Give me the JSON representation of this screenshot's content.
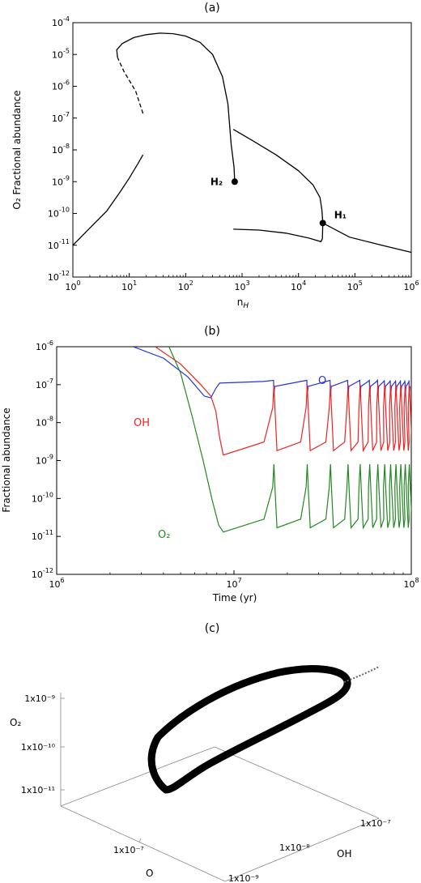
{
  "chart_data": [
    {
      "panel_label": "(a)",
      "type": "line",
      "xlabel": "n_H",
      "ylabel": "O₂ Fractional abundance",
      "xscale": "log",
      "yscale": "log",
      "xlim": [
        1,
        1000000
      ],
      "ylim": [
        1e-12,
        0.0001
      ],
      "xticks": [
        {
          "value": 1,
          "base": "10",
          "exp": "0"
        },
        {
          "value": 10,
          "base": "10",
          "exp": "1"
        },
        {
          "value": 100,
          "base": "10",
          "exp": "2"
        },
        {
          "value": 1000,
          "base": "10",
          "exp": "3"
        },
        {
          "value": 10000,
          "base": "10",
          "exp": "4"
        },
        {
          "value": 100000,
          "base": "10",
          "exp": "5"
        },
        {
          "value": 1000000,
          "base": "10",
          "exp": "6"
        }
      ],
      "yticks": [
        {
          "value": 1e-12,
          "base": "10",
          "exp": "-12"
        },
        {
          "value": 1e-11,
          "base": "10",
          "exp": "-11"
        },
        {
          "value": 1e-10,
          "base": "10",
          "exp": "-10"
        },
        {
          "value": 1e-09,
          "base": "10",
          "exp": "-9"
        },
        {
          "value": 1e-08,
          "base": "10",
          "exp": "-8"
        },
        {
          "value": 1e-07,
          "base": "10",
          "exp": "-7"
        },
        {
          "value": 1e-06,
          "base": "10",
          "exp": "-6"
        },
        {
          "value": 1e-05,
          "base": "10",
          "exp": "-5"
        },
        {
          "value": 0.0001,
          "base": "10",
          "exp": "-4"
        }
      ],
      "series": [
        {
          "style": "solid",
          "points": [
            [
              1,
              1e-11
            ],
            [
              2,
              3.5e-11
            ],
            [
              4,
              1.2e-10
            ],
            [
              7,
              5e-10
            ],
            [
              10,
              1.3e-09
            ],
            [
              14,
              3.5e-09
            ],
            [
              17.5,
              7e-09
            ]
          ]
        },
        {
          "style": "dashed",
          "points": [
            [
              17.5,
              1.4e-07
            ],
            [
              13,
              7e-07
            ],
            [
              8,
              3e-06
            ],
            [
              6.2,
              8e-06
            ]
          ]
        },
        {
          "style": "solid",
          "points": [
            [
              6.2,
              8e-06
            ],
            [
              6,
              1.4e-05
            ],
            [
              7.5,
              2.2e-05
            ],
            [
              12,
              3.4e-05
            ],
            [
              20,
              4.2e-05
            ],
            [
              35,
              4.7e-05
            ],
            [
              60,
              4.5e-05
            ],
            [
              100,
              3.8e-05
            ],
            [
              180,
              2.4e-05
            ],
            [
              300,
              1e-05
            ],
            [
              450,
              2e-06
            ],
            [
              560,
              2.8e-07
            ],
            [
              640,
              1.5e-08
            ],
            [
              720,
              2.8e-09
            ],
            [
              740,
              1e-09
            ]
          ]
        },
        {
          "style": "solid",
          "points": [
            [
              700,
              4.4e-08
            ],
            [
              1500,
              2e-08
            ],
            [
              4000,
              7e-09
            ],
            [
              10000,
              2.2e-09
            ],
            [
              18000,
              8e-10
            ],
            [
              24000,
              3.2e-10
            ],
            [
              26000,
              1.3e-10
            ],
            [
              27000,
              5e-11
            ],
            [
              80000,
              1.8e-11
            ],
            [
              300000,
              1e-11
            ],
            [
              1000000,
              6e-12
            ]
          ]
        },
        {
          "style": "solid",
          "points": [
            [
              700,
              3.2e-11
            ],
            [
              2000,
              3e-11
            ],
            [
              6000,
              2.4e-11
            ],
            [
              15000,
              1.7e-11
            ],
            [
              25000,
              1.3e-11
            ],
            [
              26500,
              1.6e-11
            ],
            [
              27000,
              5e-11
            ]
          ]
        }
      ],
      "markers": [
        {
          "label": "H₂",
          "x": 740,
          "y": 1e-09
        },
        {
          "label": "H₁",
          "x": 27000,
          "y": 5e-11
        }
      ]
    },
    {
      "panel_label": "(b)",
      "type": "line",
      "xlabel": "Time (yr)",
      "ylabel": "Fractional abundance",
      "xscale": "log",
      "yscale": "log",
      "xlim": [
        1000000,
        100000000
      ],
      "ylim": [
        1e-12,
        1e-06
      ],
      "xticks": [
        {
          "value": 1000000,
          "base": "10",
          "exp": "6"
        },
        {
          "value": 10000000,
          "base": "10",
          "exp": "7"
        },
        {
          "value": 100000000,
          "base": "10",
          "exp": "8"
        }
      ],
      "yticks": [
        {
          "value": 1e-12,
          "base": "10",
          "exp": "-12"
        },
        {
          "value": 1e-11,
          "base": "10",
          "exp": "-11"
        },
        {
          "value": 1e-10,
          "base": "10",
          "exp": "-10"
        },
        {
          "value": 1e-09,
          "base": "10",
          "exp": "-9"
        },
        {
          "value": 1e-08,
          "base": "10",
          "exp": "-8"
        },
        {
          "value": 1e-07,
          "base": "10",
          "exp": "-7"
        },
        {
          "value": 1e-06,
          "base": "10",
          "exp": "-6"
        }
      ],
      "series": [
        {
          "name": "O",
          "color": "#2233dd",
          "base": 9e-08,
          "peak": 1.3e-07,
          "dip": 5e-08,
          "initial": [
            [
              2700000,
              1e-06
            ],
            [
              4000000,
              5e-07
            ],
            [
              5500000,
              1.6e-07
            ],
            [
              6800000,
              5e-08
            ],
            [
              7400000,
              4.5e-08
            ],
            [
              7900000,
              8e-08
            ],
            [
              8300000,
              1.1e-07
            ]
          ]
        },
        {
          "name": "OH",
          "color": "#ee2222",
          "base": 1.4e-09,
          "peak": 1e-07,
          "dip": 1.4e-09,
          "initial": [
            [
              3600000,
              1e-06
            ],
            [
              5000000,
              3.5e-07
            ],
            [
              6500000,
              1e-07
            ],
            [
              7400000,
              5e-08
            ],
            [
              7900000,
              2e-08
            ],
            [
              8300000,
              4e-09
            ],
            [
              8700000,
              1.4e-09
            ]
          ]
        },
        {
          "name": "O₂",
          "color": "#228822",
          "base": 1.3e-11,
          "peak": 8e-10,
          "dip": 1.3e-11,
          "initial": [
            [
              4300000,
              1e-06
            ],
            [
              5000000,
              2e-07
            ],
            [
              5800000,
              1.5e-08
            ],
            [
              6700000,
              1e-09
            ],
            [
              7500000,
              1e-10
            ],
            [
              8200000,
              2e-11
            ],
            [
              8700000,
              1.3e-11
            ]
          ]
        }
      ],
      "oscillation_peaks_yr": [
        16800000,
        25900000,
        35000000,
        44000000,
        51500000,
        58300000,
        64800000,
        70800000,
        76500000,
        82000000,
        87300000,
        92500000,
        97500000
      ]
    },
    {
      "panel_label": "(c)",
      "type": "scatter",
      "projection": "3d",
      "axes": {
        "x": "O",
        "y": "OH",
        "z": "O₂"
      },
      "z_ticks": [
        "1x10⁻⁹",
        "1x10⁻¹⁰",
        "1x10⁻¹¹"
      ],
      "x_ticks": [
        "1x10⁻⁷"
      ],
      "y_ticks": [
        "1x10⁻⁹",
        "1x10⁻⁸",
        "1x10⁻⁷"
      ]
    }
  ]
}
